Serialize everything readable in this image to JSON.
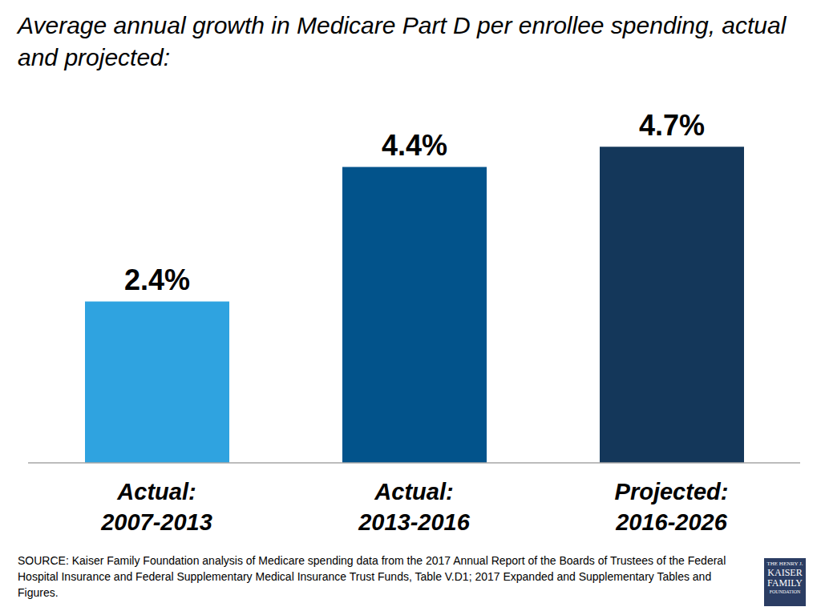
{
  "chart_data": {
    "type": "bar",
    "title": "Average annual growth in Medicare Part D per enrollee spending, actual and projected:",
    "categories": [
      "Actual: 2007-2013",
      "Actual: 2013-2016",
      "Projected: 2016-2026"
    ],
    "values": [
      2.4,
      4.4,
      4.7
    ],
    "value_labels": [
      "2.4%",
      "4.4%",
      "4.7%"
    ],
    "colors": [
      "#2fa3e0",
      "#02538b",
      "#14375a"
    ],
    "ylim": [
      0,
      5
    ],
    "data_labels": true,
    "tick_labels": "x",
    "grid": false,
    "annotations": [
      "SOURCE: Kaiser Family Foundation analysis of Medicare spending data from the 2017 Annual Report of the Boards of Trustees of the Federal Hospital Insurance and Federal Supplementary Medical Insurance Trust Funds, Table V.D1; 2017 Expanded and Supplementary Tables and Figures.",
      "THE HENRY J. KAISER FAMILY FOUNDATION"
    ]
  }
}
